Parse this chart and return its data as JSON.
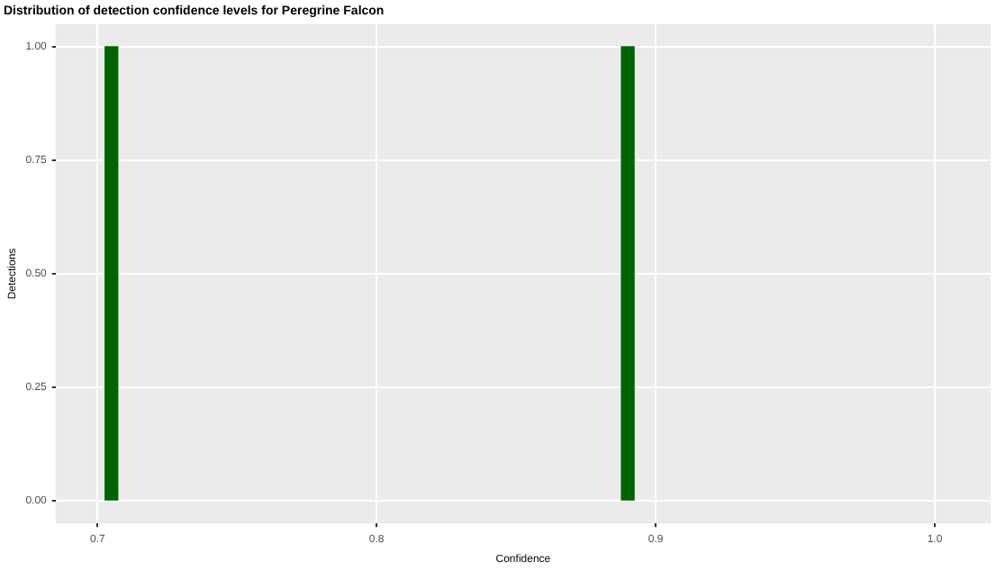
{
  "chart_data": {
    "type": "bar",
    "title": "Distribution of detection confidence levels for Peregrine Falcon",
    "xlabel": "Confidence",
    "ylabel": "Detections",
    "x": [
      0.705,
      0.89
    ],
    "values": [
      1,
      1
    ],
    "color": "#006400",
    "xlim": [
      0.685,
      1.02
    ],
    "xticks": [
      0.7,
      0.8,
      0.9,
      {
        "value": 1,
        "label": "1.0"
      }
    ],
    "ylim": [
      -0.05,
      1.05
    ],
    "yticks": [
      {
        "value": 0,
        "label": "0.00"
      },
      {
        "value": 0.25,
        "label": "0.25"
      },
      {
        "value": 0.5,
        "label": "0.50"
      },
      {
        "value": 0.75,
        "label": "0.75"
      },
      {
        "value": 1,
        "label": "1.00"
      }
    ],
    "grid": true,
    "legend": false
  }
}
